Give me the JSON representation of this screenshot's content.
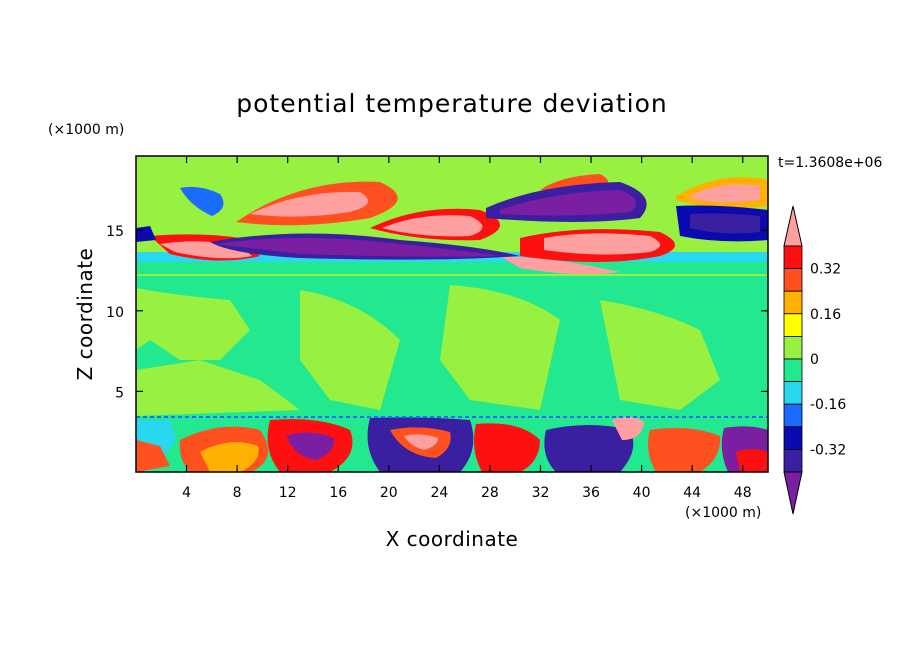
{
  "chart_data": {
    "type": "heatmap",
    "title": "potential temperature deviation",
    "xlabel": "X coordinate",
    "ylabel": "Z coordinate",
    "x_unit": "(×1000 m)",
    "y_unit": "(×1000 m)",
    "time_label": "t=1.3608e+06",
    "xlim": [
      0,
      50
    ],
    "ylim": [
      0,
      19.6
    ],
    "x_ticks": [
      4,
      8,
      12,
      16,
      20,
      24,
      28,
      32,
      36,
      40,
      44,
      48
    ],
    "y_ticks": [
      5,
      10,
      15
    ],
    "colorbar": {
      "levels": [
        -0.4,
        -0.32,
        -0.24,
        -0.16,
        -0.08,
        0,
        0.08,
        0.16,
        0.24,
        0.32,
        0.4
      ],
      "colors": [
        "#7a1fa2",
        "#3a1fa0",
        "#0a0ab0",
        "#1a6cff",
        "#28d8f0",
        "#22e890",
        "#98f040",
        "#ffff00",
        "#ffb000",
        "#ff5020",
        "#ff1010",
        "#ffa0a0"
      ],
      "labels": [
        "0.32",
        "0.16",
        "0",
        "-0.16",
        "-0.32"
      ],
      "extend": "both"
    },
    "regions": [
      {
        "layer": "upper",
        "x": [
          0,
          50
        ],
        "z": [
          12.5,
          19.6
        ],
        "dominant": "alternating warm/cold lenses"
      },
      {
        "layer": "middle",
        "x": [
          0,
          50
        ],
        "z": [
          3.5,
          12.5
        ],
        "dominant": "0 to 0.08"
      },
      {
        "layer": "lower",
        "x": [
          0,
          50
        ],
        "z": [
          0,
          3.5
        ],
        "dominant": "strong turbulent anomalies"
      }
    ]
  }
}
